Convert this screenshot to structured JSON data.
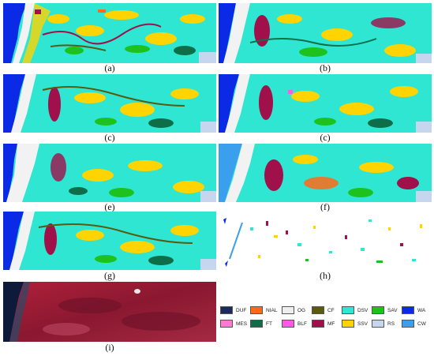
{
  "captions": {
    "a": "(a)",
    "b": "(b)",
    "c1": "(c)",
    "c2": "(c)",
    "e": "(e)",
    "f": "(f)",
    "g": "(g)",
    "h": "(h)",
    "i": "(i)"
  },
  "legend": [
    {
      "code": "DUF",
      "color": "#1a2a5c"
    },
    {
      "code": "NIAL",
      "color": "#ff6a1a"
    },
    {
      "code": "OG",
      "color": "#eeeeee"
    },
    {
      "code": "CF",
      "color": "#5a5a10"
    },
    {
      "code": "DSV",
      "color": "#2ee6d2"
    },
    {
      "code": "SAV",
      "color": "#1ec21e"
    },
    {
      "code": "WA",
      "color": "#0a2ae6"
    },
    {
      "code": "MES",
      "color": "#ff7ad0"
    },
    {
      "code": "FT",
      "color": "#0e6e4a"
    },
    {
      "code": "BLF",
      "color": "#ff5ae6"
    },
    {
      "code": "MF",
      "color": "#a0104a"
    },
    {
      "code": "SSV",
      "color": "#ffd400"
    },
    {
      "code": "RS",
      "color": "#c6d6ee"
    },
    {
      "code": "CW",
      "color": "#3aa0ee"
    }
  ]
}
